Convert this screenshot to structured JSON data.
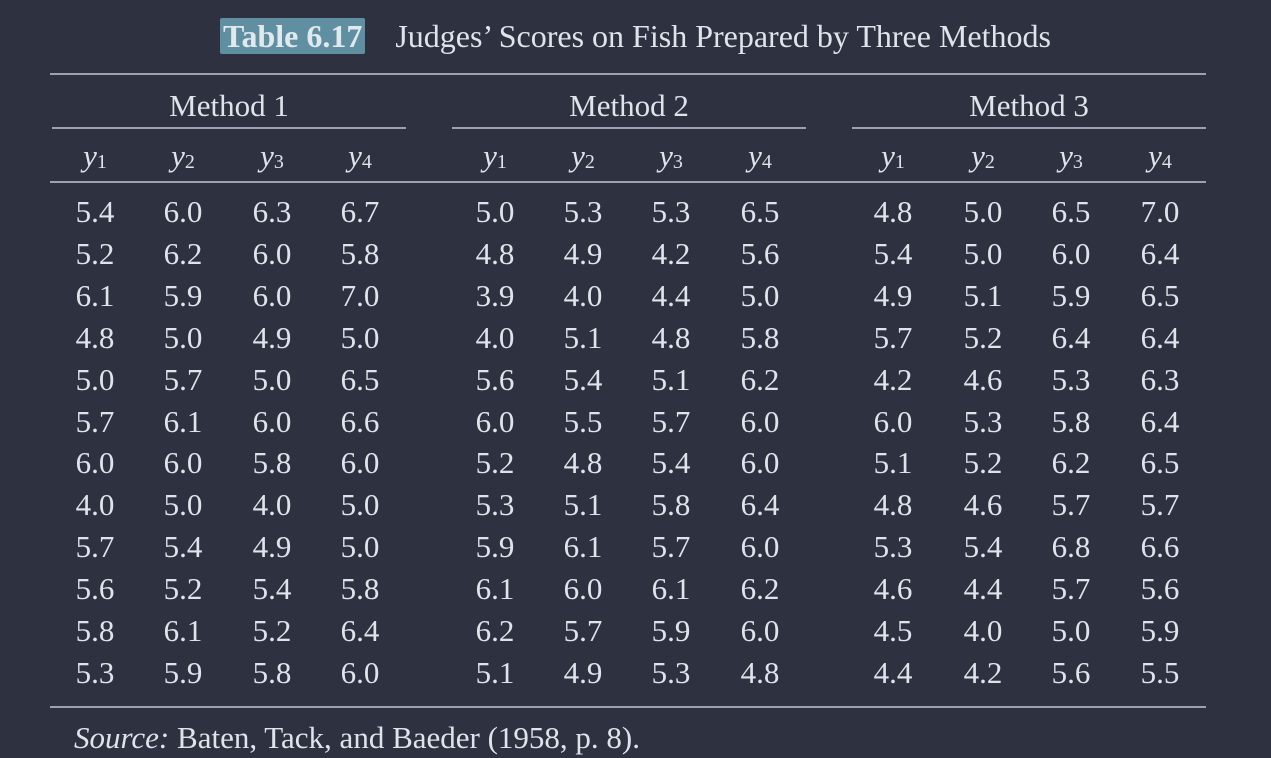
{
  "caption": {
    "label": "Table 6.17",
    "title": "Judges’ Scores on Fish Prepared by Three Methods"
  },
  "variable_symbol": "y",
  "methods": [
    {
      "name": "Method 1",
      "variables": [
        "1",
        "2",
        "3",
        "4"
      ],
      "rows": [
        [
          "5.4",
          "6.0",
          "6.3",
          "6.7"
        ],
        [
          "5.2",
          "6.2",
          "6.0",
          "5.8"
        ],
        [
          "6.1",
          "5.9",
          "6.0",
          "7.0"
        ],
        [
          "4.8",
          "5.0",
          "4.9",
          "5.0"
        ],
        [
          "5.0",
          "5.7",
          "5.0",
          "6.5"
        ],
        [
          "5.7",
          "6.1",
          "6.0",
          "6.6"
        ],
        [
          "6.0",
          "6.0",
          "5.8",
          "6.0"
        ],
        [
          "4.0",
          "5.0",
          "4.0",
          "5.0"
        ],
        [
          "5.7",
          "5.4",
          "4.9",
          "5.0"
        ],
        [
          "5.6",
          "5.2",
          "5.4",
          "5.8"
        ],
        [
          "5.8",
          "6.1",
          "5.2",
          "6.4"
        ],
        [
          "5.3",
          "5.9",
          "5.8",
          "6.0"
        ]
      ]
    },
    {
      "name": "Method 2",
      "variables": [
        "1",
        "2",
        "3",
        "4"
      ],
      "rows": [
        [
          "5.0",
          "5.3",
          "5.3",
          "6.5"
        ],
        [
          "4.8",
          "4.9",
          "4.2",
          "5.6"
        ],
        [
          "3.9",
          "4.0",
          "4.4",
          "5.0"
        ],
        [
          "4.0",
          "5.1",
          "4.8",
          "5.8"
        ],
        [
          "5.6",
          "5.4",
          "5.1",
          "6.2"
        ],
        [
          "6.0",
          "5.5",
          "5.7",
          "6.0"
        ],
        [
          "5.2",
          "4.8",
          "5.4",
          "6.0"
        ],
        [
          "5.3",
          "5.1",
          "5.8",
          "6.4"
        ],
        [
          "5.9",
          "6.1",
          "5.7",
          "6.0"
        ],
        [
          "6.1",
          "6.0",
          "6.1",
          "6.2"
        ],
        [
          "6.2",
          "5.7",
          "5.9",
          "6.0"
        ],
        [
          "5.1",
          "4.9",
          "5.3",
          "4.8"
        ]
      ]
    },
    {
      "name": "Method 3",
      "variables": [
        "1",
        "2",
        "3",
        "4"
      ],
      "rows": [
        [
          "4.8",
          "5.0",
          "6.5",
          "7.0"
        ],
        [
          "5.4",
          "5.0",
          "6.0",
          "6.4"
        ],
        [
          "4.9",
          "5.1",
          "5.9",
          "6.5"
        ],
        [
          "5.7",
          "5.2",
          "6.4",
          "6.4"
        ],
        [
          "4.2",
          "4.6",
          "5.3",
          "6.3"
        ],
        [
          "6.0",
          "5.3",
          "5.8",
          "6.4"
        ],
        [
          "5.1",
          "5.2",
          "6.2",
          "6.5"
        ],
        [
          "4.8",
          "4.6",
          "5.7",
          "5.7"
        ],
        [
          "5.3",
          "5.4",
          "6.8",
          "6.6"
        ],
        [
          "4.6",
          "4.4",
          "5.7",
          "5.6"
        ],
        [
          "4.5",
          "4.0",
          "5.0",
          "5.9"
        ],
        [
          "4.4",
          "4.2",
          "5.6",
          "5.5"
        ]
      ]
    }
  ],
  "source": {
    "label": "Source:",
    "text": "Baten, Tack, and Baeder (1958, p. 8)."
  }
}
